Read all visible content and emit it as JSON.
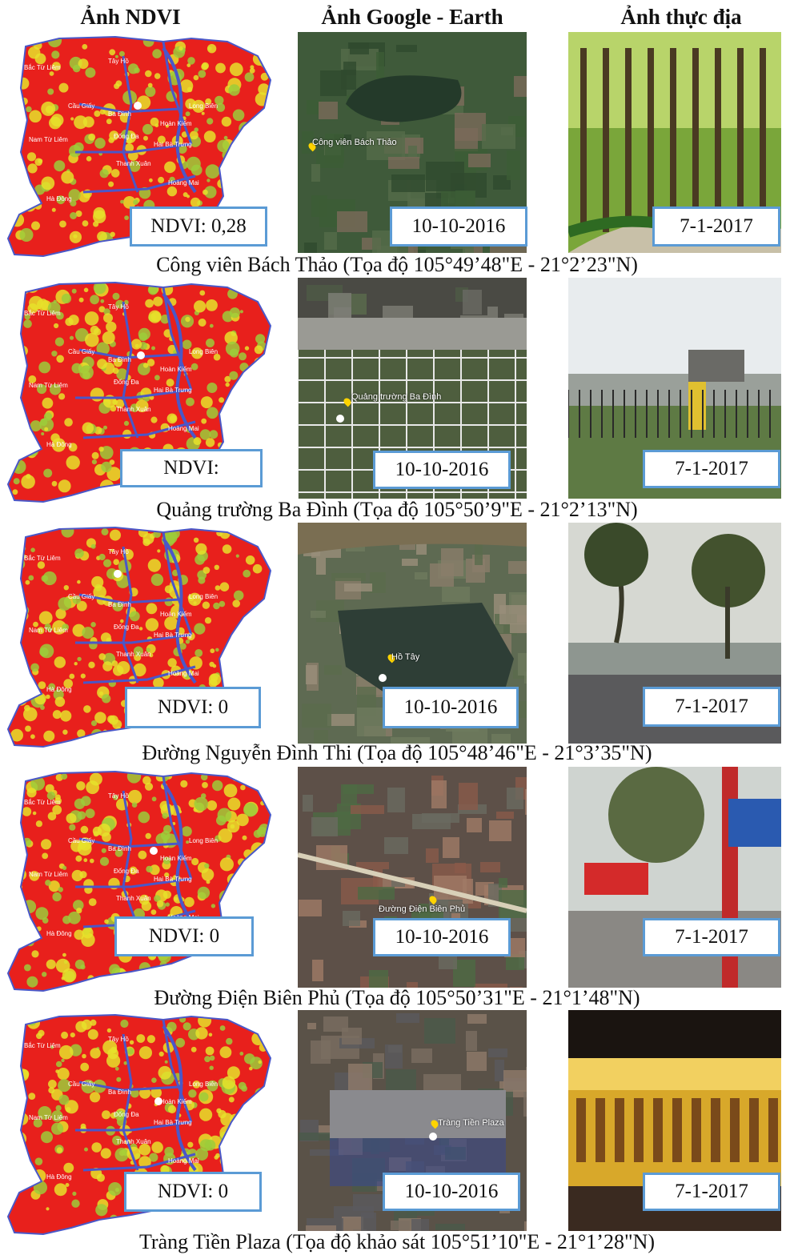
{
  "headers": {
    "ndvi": "Ảnh NDVI",
    "google_earth": "Ảnh Google - Earth",
    "field": "Ảnh thực địa"
  },
  "rows": [
    {
      "ndvi_label": "NDVI:  0,28",
      "ge_date": "10-10-2016",
      "field_date": "7-1-2017",
      "ge_label": "Công viên Bách Thảo",
      "caption": "Công viên Bách Thảo (Tọa độ 105°49’48\"E - 21°2’23\"N)"
    },
    {
      "ndvi_label": "NDVI:",
      "ge_date": "10-10-2016",
      "field_date": "7-1-2017",
      "ge_label": "Quảng trường Ba Đình",
      "caption": "Quảng trường Ba Đình (Tọa độ 105°50’9\"E - 21°2’13\"N)"
    },
    {
      "ndvi_label": "NDVI:  0",
      "ge_date": "10-10-2016",
      "field_date": "7-1-2017",
      "ge_label": "Hồ Tây",
      "caption": "Đường Nguyễn Đình Thi (Tọa độ 105°48’46\"E - 21°3’35\"N)"
    },
    {
      "ndvi_label": "NDVI:  0",
      "ge_date": "10-10-2016",
      "field_date": "7-1-2017",
      "ge_label": "Đường Điện Biên Phủ",
      "caption": "Đường Điện Biên Phủ (Tọa độ 105°50’31\"E - 21°1’48\"N)"
    },
    {
      "ndvi_label": "NDVI:  0",
      "ge_date": "10-10-2016",
      "field_date": "7-1-2017",
      "ge_label": "Tràng Tiền Plaza",
      "caption": "Tràng Tiền Plaza (Tọa độ khảo sát 105°51’10\"E - 21°1’28\"N)"
    }
  ],
  "districts": [
    "Bắc Từ Liêm",
    "Tây Hồ",
    "Cầu Giấy",
    "Ba Đình",
    "Hoàn Kiếm",
    "Long Biên",
    "Nam Từ Liêm",
    "Đống Đa",
    "Hai Bà Trưng",
    "Thanh Xuân",
    "Hoàng Mai",
    "Hà Đông"
  ],
  "colors": {
    "ndvi_red": "#e8201c",
    "ndvi_yellow": "#e6e22a",
    "ndvi_green": "#9ccc3a",
    "district_border": "#4a57c8",
    "box_border": "#5b9bd5"
  }
}
